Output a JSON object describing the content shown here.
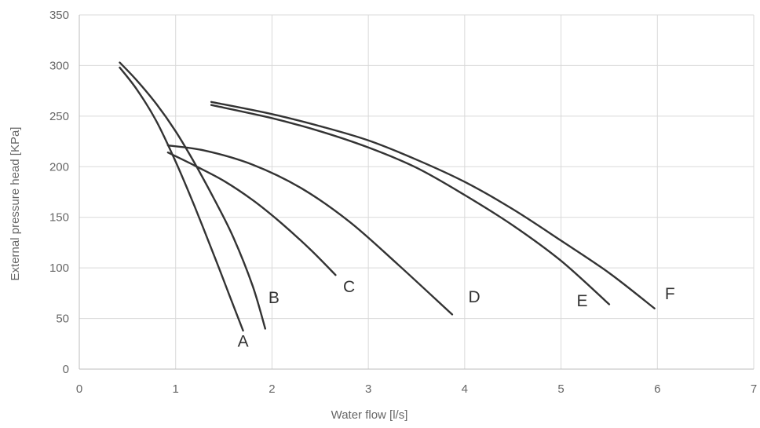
{
  "chart_data": {
    "type": "line",
    "xlabel": "Water flow [l/s]",
    "ylabel": "External pressure head [KPa]",
    "xlim": [
      0,
      7
    ],
    "ylim": [
      0,
      350
    ],
    "xticks": [
      0,
      1,
      2,
      3,
      4,
      5,
      6,
      7
    ],
    "yticks": [
      0,
      50,
      100,
      150,
      200,
      250,
      300,
      350
    ],
    "grid": true,
    "legend": "none",
    "line_color": "#333333",
    "series": [
      {
        "name": "A",
        "x": [
          0.42,
          0.6,
          0.8,
          1.0,
          1.2,
          1.4,
          1.55,
          1.7
        ],
        "y": [
          298,
          276,
          245,
          205,
          160,
          112,
          75,
          38
        ]
      },
      {
        "name": "B",
        "x": [
          0.42,
          0.6,
          0.8,
          1.0,
          1.2,
          1.4,
          1.6,
          1.8,
          1.93
        ],
        "y": [
          303,
          285,
          262,
          235,
          203,
          168,
          130,
          82,
          40
        ]
      },
      {
        "name": "C",
        "x": [
          0.92,
          1.2,
          1.5,
          1.8,
          2.1,
          2.4,
          2.66
        ],
        "y": [
          214,
          201,
          186,
          167,
          144,
          118,
          93
        ]
      },
      {
        "name": "D",
        "x": [
          0.92,
          1.3,
          1.8,
          2.3,
          2.8,
          3.3,
          3.87
        ],
        "y": [
          221,
          216,
          202,
          179,
          146,
          104,
          54
        ]
      },
      {
        "name": "E",
        "x": [
          1.37,
          2.0,
          2.5,
          3.0,
          3.5,
          4.0,
          4.5,
          5.0,
          5.5
        ],
        "y": [
          261,
          248,
          235,
          219,
          199,
          172,
          142,
          107,
          64
        ]
      },
      {
        "name": "F",
        "x": [
          1.37,
          2.0,
          2.5,
          3.0,
          3.5,
          4.0,
          4.5,
          5.0,
          5.5,
          5.97
        ],
        "y": [
          264,
          252,
          240,
          226,
          207,
          185,
          158,
          127,
          95,
          60
        ]
      }
    ],
    "annotations": [
      {
        "text": "A",
        "x": 1.7,
        "y": 22
      },
      {
        "text": "B",
        "x": 2.02,
        "y": 65
      },
      {
        "text": "C",
        "x": 2.8,
        "y": 76
      },
      {
        "text": "D",
        "x": 4.1,
        "y": 66
      },
      {
        "text": "E",
        "x": 5.22,
        "y": 62
      },
      {
        "text": "F",
        "x": 6.13,
        "y": 69
      }
    ]
  }
}
